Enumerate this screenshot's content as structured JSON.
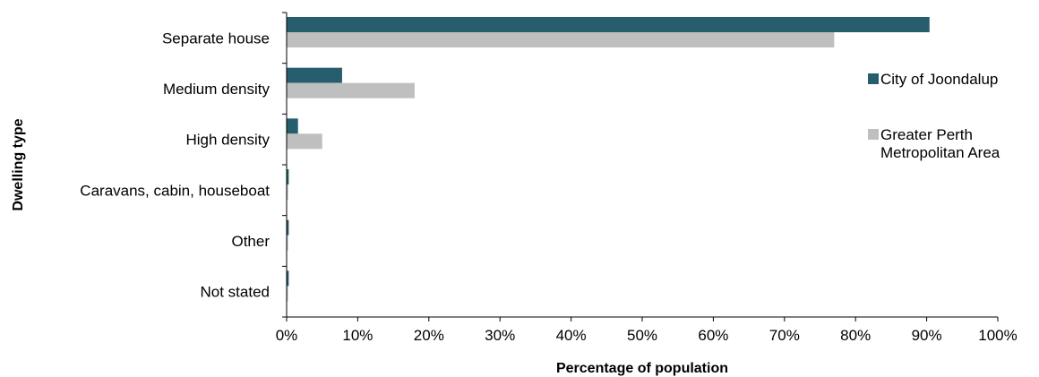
{
  "chart_data": {
    "type": "bar",
    "orientation": "horizontal",
    "categories": [
      "Separate house",
      "Medium density",
      "High density",
      "Caravans, cabin, houseboat",
      "Other",
      "Not stated"
    ],
    "series": [
      {
        "name": "City of Joondalup",
        "color": "#275E6E",
        "values": [
          90.4,
          7.8,
          1.6,
          0.3,
          0.3,
          0.3
        ]
      },
      {
        "name": "Greater Perth\nMetropolitan Area",
        "color": "#BFBFBF",
        "values": [
          77.0,
          18.0,
          5.0,
          0.2,
          0.2,
          0.2
        ]
      }
    ],
    "xlabel": "Percentage of population",
    "ylabel": "Dwelling type",
    "xlim": [
      0,
      100
    ],
    "x_ticks": [
      "0%",
      "10%",
      "20%",
      "30%",
      "40%",
      "50%",
      "60%",
      "70%",
      "80%",
      "90%",
      "100%"
    ],
    "grid": false,
    "legend_position": "right"
  }
}
